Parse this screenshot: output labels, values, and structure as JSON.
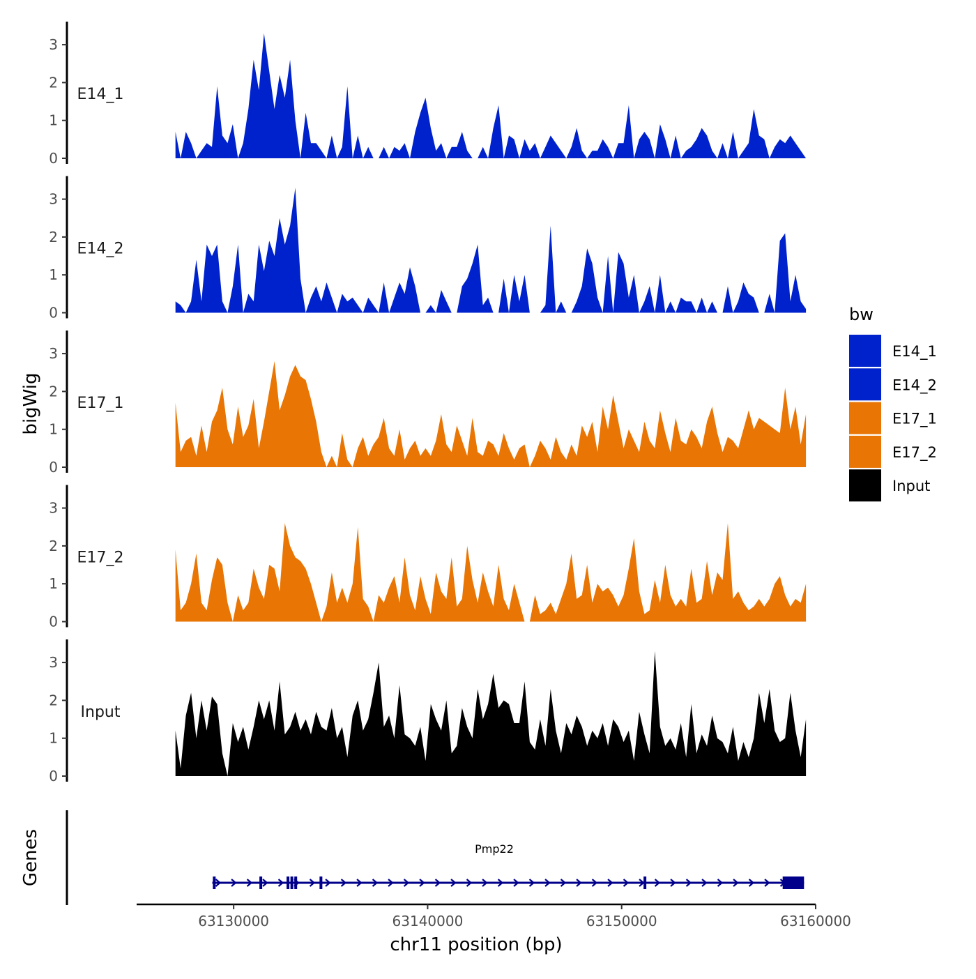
{
  "chart_data": {
    "type": "area",
    "title": "",
    "ylabel": "bigWig",
    "xlabel": "chr11 position (bp)",
    "xlim": [
      63125000,
      63160000
    ],
    "data_range": [
      63127000,
      63159500
    ],
    "ylim": [
      0,
      3.5
    ],
    "y_ticks": [
      0,
      1,
      2,
      3
    ],
    "x_ticks": [
      {
        "value": 63130000,
        "label": "63130000"
      },
      {
        "value": 63140000,
        "label": "63140000"
      },
      {
        "value": 63150000,
        "label": "63150000"
      },
      {
        "value": 63160000,
        "label": "63160000"
      }
    ],
    "legend": {
      "title": "bw",
      "position": "right",
      "entries": [
        {
          "label": "E14_1",
          "color": "#0022CC"
        },
        {
          "label": "E14_2",
          "color": "#0022CC"
        },
        {
          "label": "E17_1",
          "color": "#E87504"
        },
        {
          "label": "E17_2",
          "color": "#E87504"
        },
        {
          "label": "Input",
          "color": "#000000"
        }
      ]
    },
    "series": [
      {
        "name": "E14_1",
        "color": "#0022CC",
        "values": [
          0.7,
          0.0,
          0.7,
          0.4,
          0.0,
          0.2,
          0.4,
          0.3,
          1.9,
          0.6,
          0.4,
          0.9,
          0.0,
          0.4,
          1.3,
          2.6,
          1.8,
          3.3,
          2.3,
          1.3,
          2.2,
          1.6,
          2.6,
          1.0,
          0.0,
          1.2,
          0.4,
          0.4,
          0.2,
          0.0,
          0.6,
          0.0,
          0.3,
          1.9,
          0.0,
          0.6,
          0.0,
          0.3,
          0.0,
          0.0,
          0.3,
          0.0,
          0.3,
          0.2,
          0.4,
          0.0,
          0.7,
          1.2,
          1.6,
          0.8,
          0.2,
          0.4,
          0.0,
          0.3,
          0.3,
          0.7,
          0.2,
          0.0,
          0.0,
          0.3,
          0.0,
          0.8,
          1.4,
          0.0,
          0.6,
          0.5,
          0.0,
          0.5,
          0.2,
          0.4,
          0.0,
          0.3,
          0.6,
          0.4,
          0.2,
          0.0,
          0.3,
          0.8,
          0.2,
          0.0,
          0.2,
          0.2,
          0.5,
          0.3,
          0.0,
          0.4,
          0.4,
          1.4,
          0.0,
          0.5,
          0.7,
          0.5,
          0.0,
          0.9,
          0.5,
          0.0,
          0.6,
          0.0,
          0.2,
          0.3,
          0.5,
          0.8,
          0.6,
          0.2,
          0.0,
          0.4,
          0.0,
          0.7,
          0.0,
          0.2,
          0.4,
          1.3,
          0.6,
          0.5,
          0.0,
          0.3,
          0.5,
          0.4,
          0.6,
          0.4,
          0.2,
          0.0
        ]
      },
      {
        "name": "E14_2",
        "color": "#0022CC",
        "values": [
          0.3,
          0.2,
          0.0,
          0.3,
          1.4,
          0.3,
          1.8,
          1.5,
          1.8,
          0.3,
          0.0,
          0.7,
          1.8,
          0.0,
          0.5,
          0.3,
          1.8,
          1.1,
          1.9,
          1.5,
          2.5,
          1.8,
          2.3,
          3.3,
          0.9,
          0.0,
          0.4,
          0.7,
          0.3,
          0.8,
          0.4,
          0.0,
          0.5,
          0.3,
          0.4,
          0.2,
          0.0,
          0.4,
          0.2,
          0.0,
          0.8,
          0.0,
          0.4,
          0.8,
          0.5,
          1.2,
          0.7,
          0.0,
          0.0,
          0.2,
          0.0,
          0.6,
          0.3,
          0.0,
          0.0,
          0.7,
          0.9,
          1.3,
          1.8,
          0.2,
          0.4,
          0.0,
          0.0,
          0.9,
          0.0,
          1.0,
          0.3,
          1.0,
          0.0,
          0.0,
          0.0,
          0.2,
          2.3,
          0.0,
          0.3,
          0.0,
          0.0,
          0.3,
          0.7,
          1.7,
          1.3,
          0.4,
          0.0,
          1.5,
          0.0,
          1.6,
          1.3,
          0.4,
          1.0,
          0.0,
          0.3,
          0.7,
          0.0,
          1.0,
          0.0,
          0.3,
          0.0,
          0.4,
          0.3,
          0.3,
          0.0,
          0.4,
          0.0,
          0.3,
          0.0,
          0.0,
          0.7,
          0.0,
          0.3,
          0.8,
          0.5,
          0.4,
          0.0,
          0.0,
          0.5,
          0.0,
          1.9,
          2.1,
          0.3,
          1.0,
          0.3,
          0.1
        ]
      },
      {
        "name": "E17_1",
        "color": "#E87504",
        "values": [
          1.7,
          0.4,
          0.7,
          0.8,
          0.3,
          1.1,
          0.4,
          1.2,
          1.5,
          2.1,
          1.0,
          0.6,
          1.6,
          0.8,
          1.1,
          1.8,
          0.5,
          1.2,
          2.0,
          2.8,
          1.5,
          1.9,
          2.4,
          2.7,
          2.4,
          2.3,
          1.8,
          1.2,
          0.4,
          0.0,
          0.3,
          0.0,
          0.9,
          0.2,
          0.0,
          0.5,
          0.8,
          0.3,
          0.6,
          0.8,
          1.3,
          0.5,
          0.3,
          1.0,
          0.2,
          0.5,
          0.7,
          0.3,
          0.5,
          0.3,
          0.7,
          1.4,
          0.6,
          0.4,
          1.1,
          0.7,
          0.3,
          1.3,
          0.4,
          0.3,
          0.7,
          0.6,
          0.3,
          0.9,
          0.5,
          0.2,
          0.5,
          0.6,
          0.0,
          0.3,
          0.7,
          0.5,
          0.2,
          0.8,
          0.4,
          0.2,
          0.6,
          0.3,
          1.1,
          0.8,
          1.2,
          0.4,
          1.6,
          1.0,
          1.9,
          1.2,
          0.5,
          1.0,
          0.7,
          0.4,
          1.2,
          0.7,
          0.5,
          1.5,
          0.9,
          0.4,
          1.3,
          0.7,
          0.6,
          1.0,
          0.8,
          0.5,
          1.2,
          1.6,
          0.9,
          0.4,
          0.8,
          0.7,
          0.5,
          1.0,
          1.5,
          1.0,
          1.3,
          1.2,
          1.1,
          1.0,
          0.9,
          2.1,
          1.0,
          1.6,
          0.6,
          1.4
        ]
      },
      {
        "name": "E17_2",
        "color": "#E87504",
        "values": [
          1.9,
          0.3,
          0.5,
          1.0,
          1.8,
          0.5,
          0.3,
          1.1,
          1.7,
          1.5,
          0.5,
          0.0,
          0.7,
          0.3,
          0.5,
          1.4,
          0.9,
          0.6,
          1.5,
          1.4,
          0.8,
          2.6,
          2.0,
          1.7,
          1.6,
          1.4,
          1.0,
          0.5,
          0.0,
          0.4,
          1.3,
          0.5,
          0.9,
          0.5,
          1.0,
          2.5,
          0.6,
          0.4,
          0.0,
          0.7,
          0.5,
          0.9,
          1.2,
          0.5,
          1.7,
          0.7,
          0.3,
          1.2,
          0.6,
          0.2,
          1.3,
          0.8,
          0.6,
          1.7,
          0.4,
          0.6,
          2.0,
          1.1,
          0.5,
          1.3,
          0.8,
          0.4,
          1.5,
          0.6,
          0.3,
          1.0,
          0.5,
          0.0,
          0.0,
          0.7,
          0.2,
          0.3,
          0.5,
          0.2,
          0.6,
          1.0,
          1.8,
          0.6,
          0.7,
          1.5,
          0.5,
          1.0,
          0.8,
          0.9,
          0.7,
          0.4,
          0.7,
          1.4,
          2.2,
          0.8,
          0.2,
          0.3,
          1.1,
          0.5,
          1.5,
          0.7,
          0.4,
          0.6,
          0.4,
          1.4,
          0.5,
          0.6,
          1.6,
          0.7,
          1.3,
          1.1,
          2.6,
          0.6,
          0.8,
          0.5,
          0.3,
          0.4,
          0.6,
          0.4,
          0.6,
          1.0,
          1.2,
          0.7,
          0.4,
          0.6,
          0.5,
          1.0
        ]
      },
      {
        "name": "Input",
        "color": "#000000",
        "values": [
          1.2,
          0.2,
          1.6,
          2.2,
          1.0,
          2.0,
          1.2,
          2.1,
          1.9,
          0.6,
          0.0,
          1.4,
          0.9,
          1.3,
          0.7,
          1.3,
          2.0,
          1.5,
          2.0,
          1.2,
          2.5,
          1.1,
          1.3,
          1.7,
          1.2,
          1.5,
          1.1,
          1.7,
          1.3,
          1.2,
          1.8,
          1.0,
          1.3,
          0.5,
          1.6,
          2.0,
          1.2,
          1.5,
          2.2,
          3.0,
          1.3,
          1.6,
          1.0,
          2.4,
          1.1,
          1.0,
          0.8,
          1.3,
          0.4,
          1.9,
          1.5,
          1.2,
          2.0,
          0.6,
          0.8,
          1.8,
          1.3,
          1.0,
          2.3,
          1.5,
          1.9,
          2.7,
          1.8,
          2.0,
          1.9,
          1.4,
          1.4,
          2.5,
          0.9,
          0.7,
          1.5,
          0.8,
          2.3,
          1.2,
          0.6,
          1.4,
          1.1,
          1.6,
          1.3,
          0.8,
          1.2,
          1.0,
          1.4,
          0.8,
          1.5,
          1.3,
          0.9,
          1.2,
          0.4,
          1.7,
          1.1,
          0.6,
          3.3,
          1.3,
          0.8,
          1.0,
          0.7,
          1.4,
          0.5,
          1.9,
          0.6,
          1.1,
          0.8,
          1.6,
          1.0,
          0.9,
          0.6,
          1.3,
          0.4,
          0.9,
          0.5,
          1.0,
          2.2,
          1.4,
          2.3,
          1.2,
          0.9,
          1.0,
          2.2,
          1.2,
          0.5,
          1.5
        ]
      }
    ],
    "genes": [
      {
        "name": "Pmp22",
        "strand": "+",
        "color": "#00008B",
        "start": 63128900,
        "end": 63159400,
        "exons": [
          63129000,
          63131400,
          63132800,
          63133000,
          63133200,
          63134500,
          63151200
        ],
        "utr_block": [
          63158300,
          63159400
        ]
      }
    ],
    "genes_ylabel": "Genes"
  }
}
